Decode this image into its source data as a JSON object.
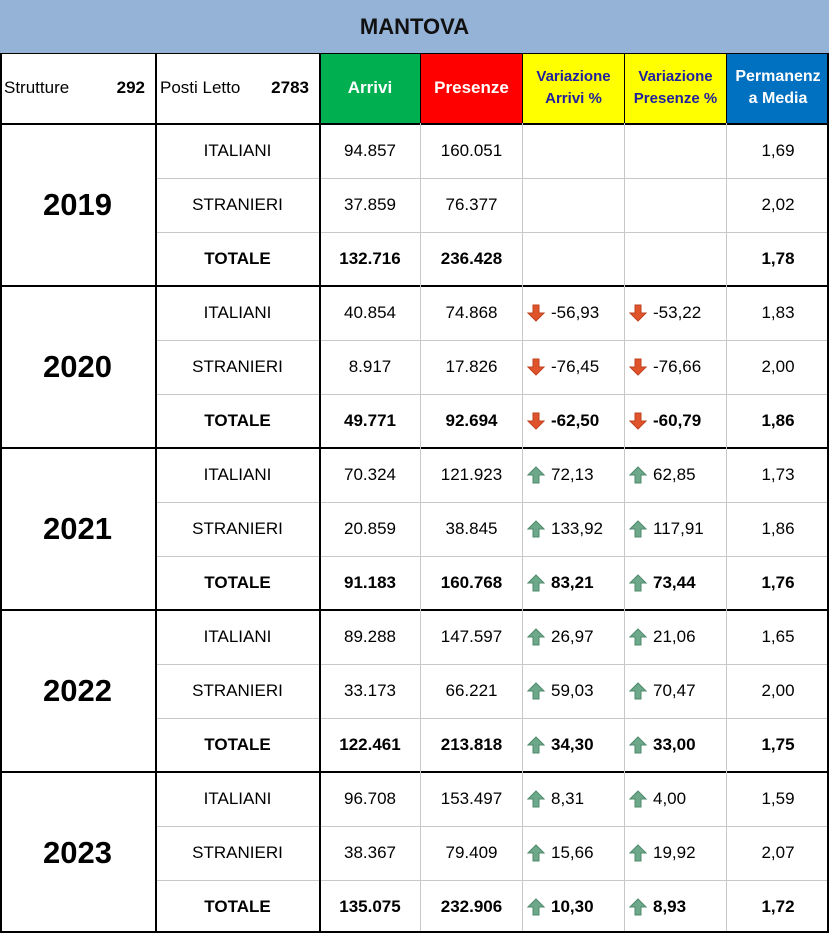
{
  "title": "MANTOVA",
  "header": {
    "strutture_label": "Strutture",
    "strutture_value": "292",
    "posti_label": "Posti Letto",
    "posti_value": "2783",
    "arrivi": "Arrivi",
    "presenze": "Presenze",
    "var_arrivi_1": "Variazione",
    "var_arrivi_2": "Arrivi %",
    "var_pres_1": "Variazione",
    "var_pres_2": "Presenze %",
    "perm_1": "Permanenz",
    "perm_2": "a Media"
  },
  "colors": {
    "title_bg": "#95b3d7",
    "arrivi_bg": "#00b050",
    "presenze_bg": "#ff0000",
    "variazione_bg": "#ffff00",
    "permanenza_bg": "#0070c0",
    "arrow_down": "#e0542b",
    "arrow_up": "#6ea88a"
  },
  "years": [
    {
      "year": "2019",
      "rows": [
        {
          "label": "ITALIANI",
          "arrivi": "94.857",
          "presenze": "160.051",
          "var_arrivi": "",
          "var_presenze": "",
          "arrow_arrivi": "",
          "arrow_presenze": "",
          "perm": "1,69"
        },
        {
          "label": "STRANIERI",
          "arrivi": "37.859",
          "presenze": "76.377",
          "var_arrivi": "",
          "var_presenze": "",
          "arrow_arrivi": "",
          "arrow_presenze": "",
          "perm": "2,02"
        },
        {
          "label": "TOTALE",
          "arrivi": "132.716",
          "presenze": "236.428",
          "var_arrivi": "",
          "var_presenze": "",
          "arrow_arrivi": "",
          "arrow_presenze": "",
          "perm": "1,78"
        }
      ]
    },
    {
      "year": "2020",
      "rows": [
        {
          "label": "ITALIANI",
          "arrivi": "40.854",
          "presenze": "74.868",
          "var_arrivi": "-56,93",
          "var_presenze": "-53,22",
          "arrow_arrivi": "down",
          "arrow_presenze": "down",
          "perm": "1,83"
        },
        {
          "label": "STRANIERI",
          "arrivi": "8.917",
          "presenze": "17.826",
          "var_arrivi": "-76,45",
          "var_presenze": "-76,66",
          "arrow_arrivi": "down",
          "arrow_presenze": "down",
          "perm": "2,00"
        },
        {
          "label": "TOTALE",
          "arrivi": "49.771",
          "presenze": "92.694",
          "var_arrivi": "-62,50",
          "var_presenze": "-60,79",
          "arrow_arrivi": "down",
          "arrow_presenze": "down",
          "perm": "1,86"
        }
      ]
    },
    {
      "year": "2021",
      "rows": [
        {
          "label": "ITALIANI",
          "arrivi": "70.324",
          "presenze": "121.923",
          "var_arrivi": "72,13",
          "var_presenze": "62,85",
          "arrow_arrivi": "up",
          "arrow_presenze": "up",
          "perm": "1,73"
        },
        {
          "label": "STRANIERI",
          "arrivi": "20.859",
          "presenze": "38.845",
          "var_arrivi": "133,92",
          "var_presenze": "117,91",
          "arrow_arrivi": "up",
          "arrow_presenze": "up",
          "perm": "1,86"
        },
        {
          "label": "TOTALE",
          "arrivi": "91.183",
          "presenze": "160.768",
          "var_arrivi": "83,21",
          "var_presenze": "73,44",
          "arrow_arrivi": "up",
          "arrow_presenze": "up",
          "perm": "1,76"
        }
      ]
    },
    {
      "year": "2022",
      "rows": [
        {
          "label": "ITALIANI",
          "arrivi": "89.288",
          "presenze": "147.597",
          "var_arrivi": "26,97",
          "var_presenze": "21,06",
          "arrow_arrivi": "up",
          "arrow_presenze": "up",
          "perm": "1,65"
        },
        {
          "label": "STRANIERI",
          "arrivi": "33.173",
          "presenze": "66.221",
          "var_arrivi": "59,03",
          "var_presenze": "70,47",
          "arrow_arrivi": "up",
          "arrow_presenze": "up",
          "perm": "2,00"
        },
        {
          "label": "TOTALE",
          "arrivi": "122.461",
          "presenze": "213.818",
          "var_arrivi": "34,30",
          "var_presenze": "33,00",
          "arrow_arrivi": "up",
          "arrow_presenze": "up",
          "perm": "1,75"
        }
      ]
    },
    {
      "year": "2023",
      "rows": [
        {
          "label": "ITALIANI",
          "arrivi": "96.708",
          "presenze": "153.497",
          "var_arrivi": "8,31",
          "var_presenze": "4,00",
          "arrow_arrivi": "up",
          "arrow_presenze": "up",
          "perm": "1,59"
        },
        {
          "label": "STRANIERI",
          "arrivi": "38.367",
          "presenze": "79.409",
          "var_arrivi": "15,66",
          "var_presenze": "19,92",
          "arrow_arrivi": "up",
          "arrow_presenze": "up",
          "perm": "2,07"
        },
        {
          "label": "TOTALE",
          "arrivi": "135.075",
          "presenze": "232.906",
          "var_arrivi": "10,30",
          "var_presenze": "8,93",
          "arrow_arrivi": "up",
          "arrow_presenze": "up",
          "perm": "1,72"
        }
      ]
    }
  ]
}
